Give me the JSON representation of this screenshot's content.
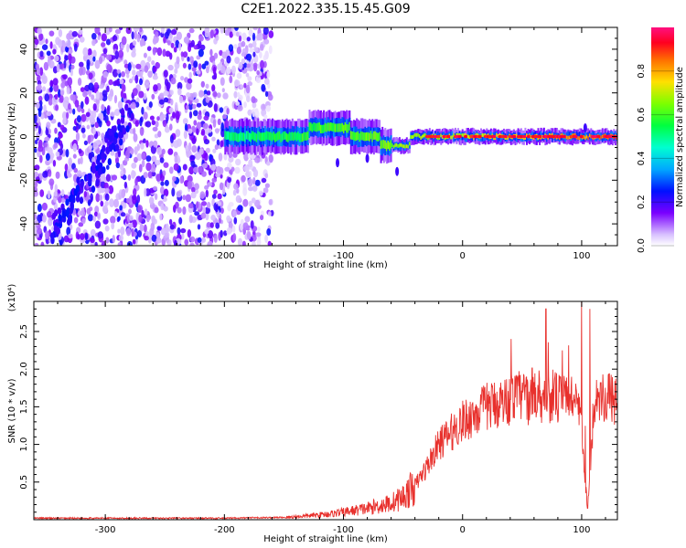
{
  "title": "C2E1.2022.335.15.45.G09",
  "chart_data": [
    {
      "type": "heatmap",
      "xlabel": "Height of straight line (km)",
      "ylabel": "Frequency (Hz)",
      "xlim": [
        -360,
        130
      ],
      "ylim": [
        -50,
        50
      ],
      "x_ticks": [
        -300,
        -200,
        -100,
        0,
        100
      ],
      "y_ticks": [
        -40,
        -20,
        0,
        20,
        40
      ],
      "colorbar": {
        "label": "Normalized spectral amplitude",
        "range": [
          0,
          1
        ],
        "ticks": [
          0.0,
          0.2,
          0.4,
          0.6,
          0.8
        ],
        "colormap": "rainbow"
      },
      "features": [
        {
          "description": "broadband diffuse emission",
          "x_range": [
            -360,
            -160
          ],
          "y_range": [
            -50,
            50
          ],
          "amplitude_range": [
            0.05,
            0.25
          ]
        },
        {
          "description": "diagonal streak",
          "x_from": -345,
          "x_to": -280,
          "y_from": -45,
          "y_to": 10
        },
        {
          "description": "narrow band near 0 Hz",
          "x_range": [
            -200,
            130
          ],
          "center_y": 0,
          "amplitude_range": [
            0.3,
            0.95
          ]
        }
      ]
    },
    {
      "type": "line",
      "xlabel": "Height of straight line (km)",
      "ylabel": "SNR (10 * v/v)",
      "y_multiplier": "(x10⁴)",
      "xlim": [
        -360,
        130
      ],
      "ylim": [
        0,
        2.9
      ],
      "x_ticks": [
        -300,
        -200,
        -100,
        0,
        100
      ],
      "y_ticks": [
        0.5,
        1.0,
        1.5,
        2.0,
        2.5
      ],
      "color": "#e8302c",
      "series": [
        {
          "x": [
            -360,
            -300,
            -250,
            -200,
            -150,
            -130,
            -110,
            -100,
            -80,
            -60,
            -50,
            -40,
            -30,
            -25,
            -20,
            -10,
            0,
            10,
            20,
            30,
            40,
            50,
            55,
            60,
            65,
            70,
            75,
            80,
            90,
            95,
            100,
            103,
            105,
            108,
            110,
            115,
            120,
            130
          ],
          "y": [
            0.02,
            0.02,
            0.02,
            0.02,
            0.03,
            0.05,
            0.08,
            0.1,
            0.15,
            0.22,
            0.3,
            0.45,
            0.7,
            0.85,
            1.0,
            1.15,
            1.3,
            1.4,
            1.5,
            1.55,
            1.6,
            1.65,
            1.6,
            1.7,
            1.65,
            1.62,
            1.65,
            1.6,
            1.65,
            1.6,
            1.2,
            0.5,
            0.15,
            0.8,
            1.6,
            1.65,
            1.63,
            1.6
          ]
        }
      ],
      "spikes": [
        {
          "x": 70,
          "y": 2.8
        },
        {
          "x": 100,
          "y": 2.9
        },
        {
          "x": 105,
          "y": 0.15
        },
        {
          "x": 107,
          "y": 2.8
        }
      ]
    }
  ]
}
